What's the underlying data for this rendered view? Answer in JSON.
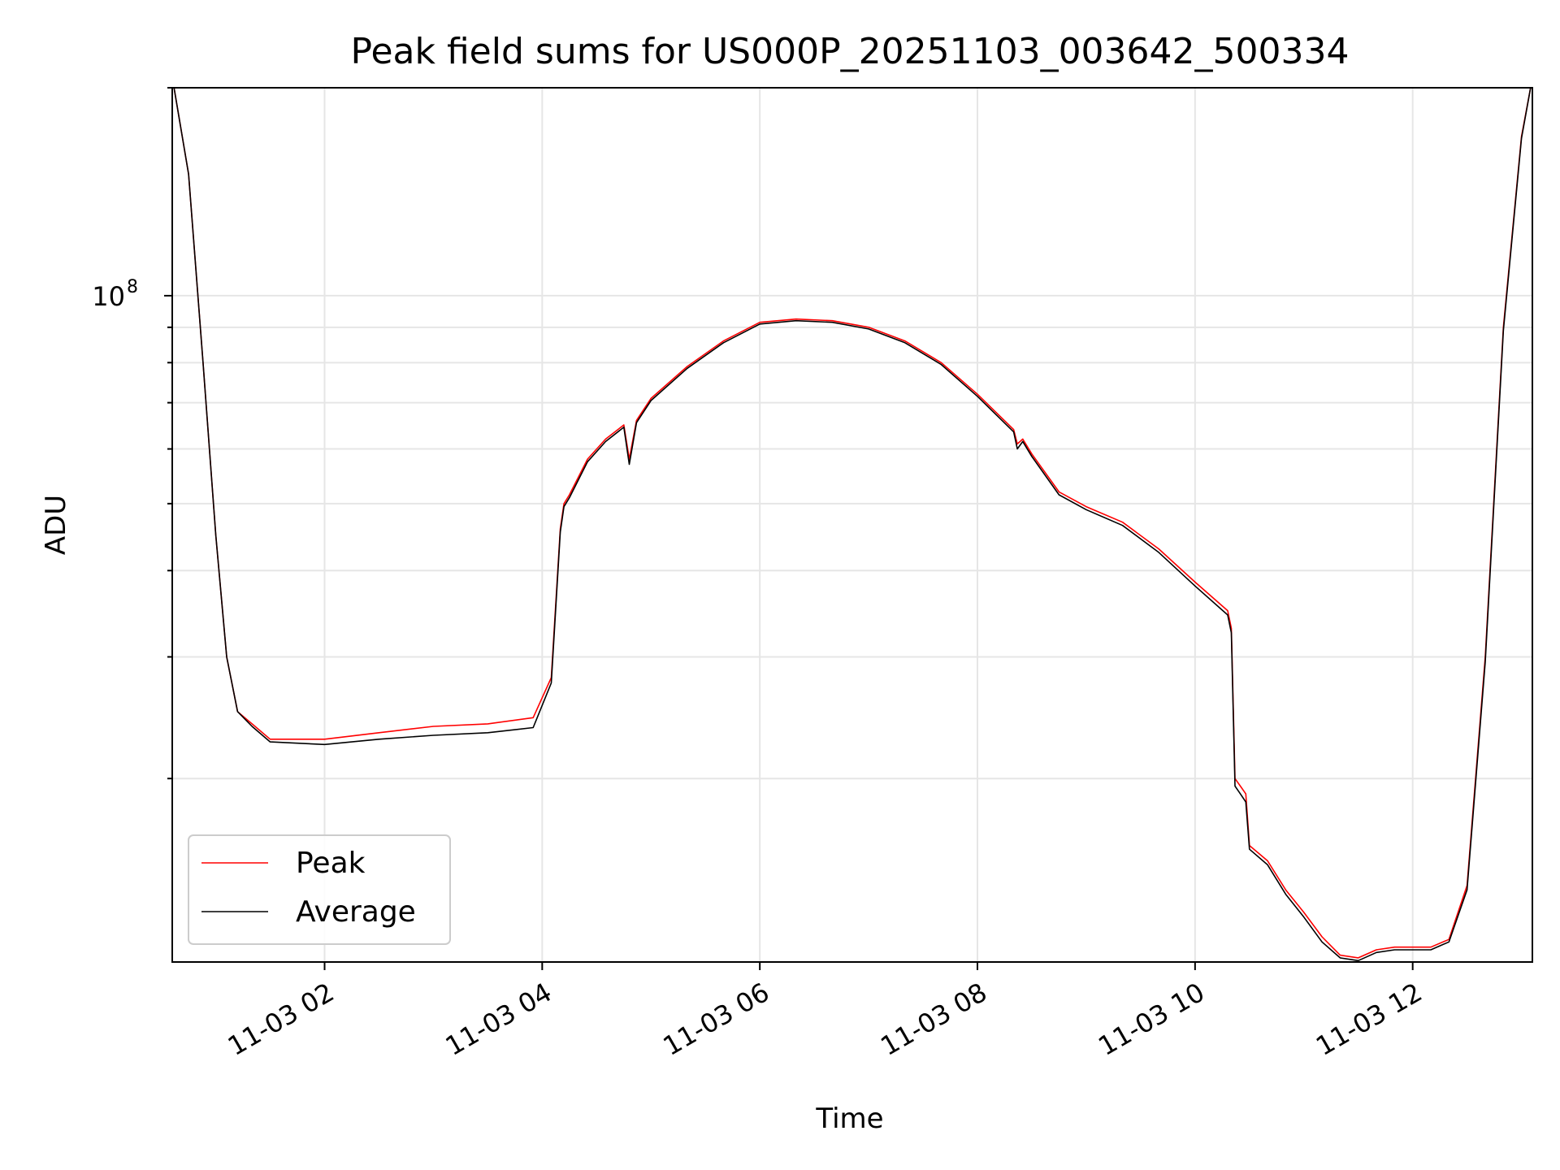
{
  "chart_data": {
    "type": "line",
    "title": "Peak field sums for US000P_20251103_003642_500334",
    "xlabel": "Time",
    "ylabel": "ADU",
    "y_scale": "log",
    "ylim": [
      10850000,
      200000000
    ],
    "xlim": [
      "2025-11-03T00:36",
      "2025-11-03T13:06"
    ],
    "grid": true,
    "legend_placement": "lower-left",
    "x_ticks": [
      "11-03 02",
      "11-03 04",
      "11-03 06",
      "11-03 08",
      "11-03 10",
      "11-03 12"
    ],
    "y_ticks": [
      {
        "base": "10",
        "exp": "8",
        "value": 100000000
      }
    ],
    "series": [
      {
        "name": "Peak",
        "color": "#ff0000",
        "x": [
          "2025-11-03T00:37",
          "2025-11-03T00:45",
          "2025-11-03T00:53",
          "2025-11-03T01:00",
          "2025-11-03T01:06",
          "2025-11-03T01:12",
          "2025-11-03T01:20",
          "2025-11-03T01:30",
          "2025-11-03T01:45",
          "2025-11-03T02:00",
          "2025-11-03T02:30",
          "2025-11-03T03:00",
          "2025-11-03T03:30",
          "2025-11-03T03:55",
          "2025-11-03T04:05",
          "2025-11-03T04:10",
          "2025-11-03T04:12",
          "2025-11-03T04:15",
          "2025-11-03T04:25",
          "2025-11-03T04:35",
          "2025-11-03T04:45",
          "2025-11-03T04:48",
          "2025-11-03T04:52",
          "2025-11-03T05:00",
          "2025-11-03T05:20",
          "2025-11-03T05:40",
          "2025-11-03T06:00",
          "2025-11-03T06:20",
          "2025-11-03T06:40",
          "2025-11-03T07:00",
          "2025-11-03T07:20",
          "2025-11-03T07:40",
          "2025-11-03T08:00",
          "2025-11-03T08:20",
          "2025-11-03T08:22",
          "2025-11-03T08:25",
          "2025-11-03T08:30",
          "2025-11-03T08:45",
          "2025-11-03T09:00",
          "2025-11-03T09:20",
          "2025-11-03T09:40",
          "2025-11-03T10:00",
          "2025-11-03T10:18",
          "2025-11-03T10:20",
          "2025-11-03T10:22",
          "2025-11-03T10:25",
          "2025-11-03T10:28",
          "2025-11-03T10:30",
          "2025-11-03T10:40",
          "2025-11-03T10:50",
          "2025-11-03T11:00",
          "2025-11-03T11:10",
          "2025-11-03T11:20",
          "2025-11-03T11:30",
          "2025-11-03T11:40",
          "2025-11-03T11:50",
          "2025-11-03T12:00",
          "2025-11-03T12:10",
          "2025-11-03T12:20",
          "2025-11-03T12:30",
          "2025-11-03T12:40",
          "2025-11-03T12:50",
          "2025-11-03T13:00",
          "2025-11-03T13:05"
        ],
        "values": [
          200000000,
          150000000,
          80000000,
          45000000,
          30000000,
          25000000,
          24000000,
          22800000,
          22800000,
          22800000,
          23300000,
          23800000,
          24000000,
          24500000,
          28000000,
          46000000,
          50000000,
          51500000,
          58000000,
          62000000,
          65000000,
          58000000,
          66000000,
          71000000,
          79000000,
          86000000,
          91500000,
          92500000,
          92000000,
          90000000,
          86000000,
          80000000,
          72000000,
          64000000,
          61000000,
          62000000,
          59000000,
          52000000,
          49500000,
          47000000,
          43000000,
          38500000,
          35000000,
          33000000,
          20000000,
          19500000,
          19000000,
          16000000,
          15200000,
          13800000,
          12800000,
          11800000,
          11100000,
          11000000,
          11300000,
          11400000,
          11400000,
          11400000,
          11700000,
          14000000,
          30000000,
          90000000,
          170000000,
          200000000
        ]
      },
      {
        "name": "Average",
        "color": "#000000",
        "x": [
          "2025-11-03T00:37",
          "2025-11-03T00:45",
          "2025-11-03T00:53",
          "2025-11-03T01:00",
          "2025-11-03T01:06",
          "2025-11-03T01:12",
          "2025-11-03T01:20",
          "2025-11-03T01:30",
          "2025-11-03T01:45",
          "2025-11-03T02:00",
          "2025-11-03T02:30",
          "2025-11-03T03:00",
          "2025-11-03T03:30",
          "2025-11-03T03:55",
          "2025-11-03T04:05",
          "2025-11-03T04:10",
          "2025-11-03T04:12",
          "2025-11-03T04:15",
          "2025-11-03T04:25",
          "2025-11-03T04:35",
          "2025-11-03T04:45",
          "2025-11-03T04:48",
          "2025-11-03T04:52",
          "2025-11-03T05:00",
          "2025-11-03T05:20",
          "2025-11-03T05:40",
          "2025-11-03T06:00",
          "2025-11-03T06:20",
          "2025-11-03T06:40",
          "2025-11-03T07:00",
          "2025-11-03T07:20",
          "2025-11-03T07:40",
          "2025-11-03T08:00",
          "2025-11-03T08:20",
          "2025-11-03T08:22",
          "2025-11-03T08:25",
          "2025-11-03T08:30",
          "2025-11-03T08:45",
          "2025-11-03T09:00",
          "2025-11-03T09:20",
          "2025-11-03T09:40",
          "2025-11-03T10:00",
          "2025-11-03T10:18",
          "2025-11-03T10:20",
          "2025-11-03T10:22",
          "2025-11-03T10:25",
          "2025-11-03T10:28",
          "2025-11-03T10:30",
          "2025-11-03T10:40",
          "2025-11-03T10:50",
          "2025-11-03T11:00",
          "2025-11-03T11:10",
          "2025-11-03T11:20",
          "2025-11-03T11:30",
          "2025-11-03T11:40",
          "2025-11-03T11:50",
          "2025-11-03T12:00",
          "2025-11-03T12:10",
          "2025-11-03T12:20",
          "2025-11-03T12:30",
          "2025-11-03T12:40",
          "2025-11-03T12:50",
          "2025-11-03T13:00",
          "2025-11-03T13:05"
        ],
        "values": [
          200000000,
          150000000,
          80000000,
          45000000,
          30000000,
          25000000,
          23800000,
          22600000,
          22500000,
          22400000,
          22800000,
          23100000,
          23300000,
          23700000,
          27500000,
          45500000,
          49500000,
          51000000,
          57500000,
          61500000,
          64500000,
          57000000,
          65500000,
          70500000,
          78500000,
          85500000,
          91000000,
          92000000,
          91500000,
          89500000,
          85500000,
          79500000,
          71500000,
          63500000,
          60000000,
          61500000,
          58500000,
          51500000,
          49000000,
          46500000,
          42500000,
          38000000,
          34500000,
          32500000,
          19500000,
          19000000,
          18500000,
          15800000,
          15000000,
          13600000,
          12600000,
          11600000,
          11000000,
          10900000,
          11200000,
          11300000,
          11300000,
          11300000,
          11600000,
          13800000,
          29500000,
          89000000,
          169000000,
          200000000
        ]
      }
    ]
  }
}
